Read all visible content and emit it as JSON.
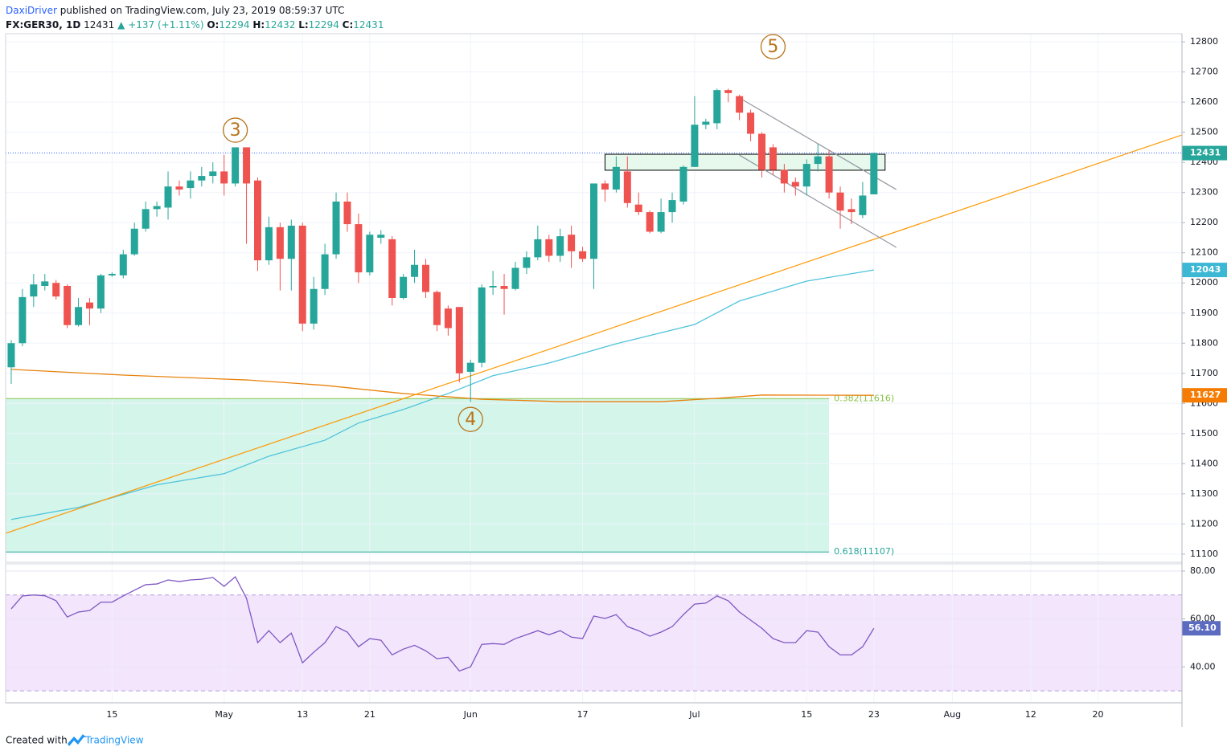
{
  "header": {
    "author": "DaxiDriver",
    "published": "published on TradingView.com, July 23, 2019 08:59:37 UTC",
    "symbol": "FX:GER30, 1D",
    "arrow": "▲",
    "change": "+137 (+1.11%)",
    "open_label": "O:",
    "high_label": "H:",
    "low_label": "L:",
    "close_label": "C:"
  },
  "footer": {
    "created": "Created with",
    "brand": "TradingView"
  },
  "chart_data": [
    {
      "type": "candlestick",
      "open": [
        11720,
        11800,
        11955,
        11990,
        12000,
        11990,
        11860,
        11935,
        11915,
        12025,
        12025,
        12095,
        12180,
        12245,
        12250,
        12320,
        12315,
        12340,
        12355,
        12370,
        12330,
        12450,
        12340,
        12075,
        12185,
        12080,
        12190,
        11865,
        11980,
        12095,
        12270,
        12195,
        12035,
        12150,
        12145,
        11950,
        12020,
        12060,
        11970,
        11915,
        11920,
        11705,
        11735,
        11985,
        11990,
        11980,
        12050,
        12085,
        12145,
        12090,
        12160,
        12105,
        12080,
        12330,
        12310,
        12370,
        12260,
        12235,
        12170,
        12235,
        12270,
        12385,
        12525,
        12530,
        12640,
        12620,
        12565,
        12495,
        12450,
        12375,
        12335,
        12320,
        12395,
        12420,
        12300,
        12245,
        12225,
        12294
      ],
      "high": [
        11810,
        11980,
        12030,
        12030,
        12010,
        11995,
        11950,
        11950,
        12030,
        12035,
        12110,
        12200,
        12270,
        12270,
        12370,
        12340,
        12370,
        12385,
        12400,
        12425,
        12450,
        12450,
        12350,
        12220,
        12200,
        12210,
        12200,
        12020,
        12130,
        12300,
        12300,
        12230,
        12170,
        12175,
        12155,
        12030,
        12110,
        12080,
        11975,
        11925,
        11920,
        11745,
        11995,
        12040,
        12030,
        12070,
        12105,
        12190,
        12160,
        12180,
        12190,
        12120,
        12330,
        12340,
        12420,
        12420,
        12300,
        12240,
        12280,
        12300,
        12390,
        12620,
        12545,
        12645,
        12645,
        12625,
        12575,
        12500,
        12460,
        12395,
        12350,
        12410,
        12460,
        12440,
        12320,
        12280,
        12335,
        12432
      ],
      "low": [
        11665,
        11790,
        11920,
        11975,
        11945,
        11850,
        11855,
        11860,
        11900,
        12020,
        12015,
        12090,
        12170,
        12220,
        12210,
        12290,
        12280,
        12320,
        12330,
        12290,
        12320,
        12130,
        12040,
        12060,
        11975,
        11975,
        11840,
        11845,
        11960,
        12080,
        12170,
        12000,
        12025,
        12130,
        11925,
        11945,
        12000,
        11950,
        11840,
        11825,
        11670,
        11605,
        11720,
        11960,
        11895,
        11975,
        12030,
        12075,
        12070,
        12070,
        12050,
        12070,
        11980,
        12270,
        12300,
        12250,
        12225,
        12165,
        12165,
        12200,
        12260,
        12385,
        12510,
        12510,
        12600,
        12540,
        12470,
        12350,
        12360,
        12300,
        12290,
        12290,
        12370,
        12280,
        12180,
        12195,
        12215,
        12294
      ],
      "close": [
        11800,
        11953,
        11995,
        12005,
        11955,
        11860,
        11920,
        11915,
        12025,
        12030,
        12095,
        12180,
        12245,
        12255,
        12320,
        12310,
        12340,
        12355,
        12370,
        12330,
        12450,
        12330,
        12075,
        12185,
        12080,
        12190,
        11865,
        11980,
        12095,
        12270,
        12195,
        12035,
        12160,
        12160,
        11950,
        12020,
        12060,
        11970,
        11860,
        11850,
        11700,
        11735,
        11985,
        11990,
        11980,
        12050,
        12085,
        12145,
        12090,
        12155,
        12105,
        12080,
        12330,
        12310,
        12385,
        12265,
        12235,
        12170,
        12235,
        12275,
        12385,
        12525,
        12535,
        12640,
        12630,
        12565,
        12495,
        12375,
        12375,
        12330,
        12320,
        12395,
        12420,
        12300,
        12240,
        12235,
        12290,
        12431
      ],
      "up_color": "#26a69a",
      "down_color": "#ef5350",
      "xlim": [
        -0.5,
        104.5
      ],
      "ylim": [
        11073,
        12827
      ],
      "yticks": [
        11100,
        11200,
        11300,
        11400,
        11500,
        11600,
        11700,
        11800,
        11900,
        12000,
        12100,
        12200,
        12300,
        12400,
        12500,
        12600,
        12700,
        12800
      ],
      "xticks": [
        {
          "value": 9,
          "label": "15"
        },
        {
          "value": 19,
          "label": "May"
        },
        {
          "value": 26,
          "label": "13"
        },
        {
          "value": 32,
          "label": "21"
        },
        {
          "value": 41,
          "label": "Jun"
        },
        {
          "value": 51,
          "label": "17"
        },
        {
          "value": 61,
          "label": "Jul"
        },
        {
          "value": 71,
          "label": "15"
        },
        {
          "value": 77,
          "label": "23"
        },
        {
          "value": 84,
          "label": "Aug"
        },
        {
          "value": 91,
          "label": "12"
        },
        {
          "value": 97,
          "label": "20"
        }
      ],
      "grid": true,
      "overlays": [
        {
          "color": "#4fc3dc",
          "x": [
            0,
            6,
            13,
            19,
            23,
            28,
            31,
            35,
            39,
            43,
            48,
            54,
            61,
            65,
            71,
            77
          ],
          "values": [
            11215,
            11255,
            11330,
            11367,
            11425,
            11478,
            11535,
            11580,
            11633,
            11692,
            11734,
            11798,
            11862,
            11940,
            12006,
            12043
          ]
        },
        {
          "color": "#e8820c",
          "x": [
            0,
            10,
            21,
            28,
            35,
            42,
            49,
            58,
            63,
            67,
            77
          ],
          "values": [
            11713,
            11694,
            11678,
            11660,
            11633,
            11614,
            11606,
            11606,
            11617,
            11628,
            11627
          ]
        }
      ],
      "trend_lines": [
        {
          "color": "#ff9800",
          "x": [
            -0.5,
            104.5
          ],
          "y": [
            11169,
            12491
          ]
        },
        {
          "color": "#9598a1",
          "x": [
            65,
            79
          ],
          "y": [
            12614,
            12310
          ]
        },
        {
          "color": "#9598a1",
          "x": [
            65,
            79
          ],
          "y": [
            12424,
            12118
          ]
        }
      ],
      "box": {
        "x": [
          53,
          78
        ],
        "y": [
          12374,
          12427
        ],
        "fill": "#e6f9ec",
        "stroke": "#000000"
      },
      "fib_zone": {
        "x_end": 73,
        "fill": "#d3f5ea",
        "levels": [
          {
            "value": 11616,
            "label": "0.382(11616)",
            "color": "#8bc34a"
          },
          {
            "value": 11107,
            "label": "0.618(11107)",
            "color": "#26a69a"
          }
        ]
      },
      "waves": [
        {
          "label": "3",
          "x": 20,
          "y": 12507
        },
        {
          "label": "4",
          "x": 41,
          "y": 11547
        },
        {
          "label": "5",
          "x": 68,
          "y": 12784
        }
      ],
      "wave_color": "#b8741a",
      "axis_markers": [
        {
          "value": 12431,
          "color": "#26a69a"
        },
        {
          "value": 12043,
          "color": "#3cb7d4"
        },
        {
          "value": 11627,
          "color": "#f57c00"
        }
      ],
      "last_price_line": {
        "value": 12431,
        "color": "#2962ff"
      }
    },
    {
      "type": "line",
      "values": [
        64.2,
        69.6,
        70,
        69.7,
        67.6,
        60.8,
        62.9,
        63.5,
        67,
        67,
        69.6,
        72,
        74.3,
        74.6,
        76.3,
        75.6,
        76.3,
        76.6,
        77.3,
        73.6,
        77.6,
        68.6,
        50.1,
        55.1,
        50.1,
        54.1,
        41.7,
        46.1,
        50.1,
        56.8,
        54.5,
        48.4,
        51.8,
        51.1,
        45,
        47.4,
        49,
        46.7,
        43.4,
        44,
        38.3,
        40,
        49.4,
        49.7,
        49.4,
        51.8,
        53.4,
        55.1,
        53.4,
        55.1,
        52.4,
        51.8,
        61.2,
        60.2,
        61.8,
        56.8,
        55.1,
        52.8,
        54.5,
        56.8,
        61.8,
        66.2,
        66.6,
        69.6,
        67.6,
        62.9,
        59.5,
        56.1,
        51.8,
        50.1,
        50.1,
        55.1,
        54.5,
        48.4,
        45,
        45,
        48.4,
        56.1
      ],
      "color": "#7e57c2",
      "ylim": [
        25,
        83
      ],
      "yticks": [
        {
          "value": 40,
          "label": "40.00"
        },
        {
          "value": 60,
          "label": "60.00"
        },
        {
          "value": 80,
          "label": "80.00"
        }
      ],
      "bands": [
        30,
        70
      ],
      "band_fill": "#f3e5fc",
      "band_color": "#b39ddb",
      "last_marker": {
        "value": 56.1,
        "label": "56.10",
        "color": "#5c6bc0"
      }
    }
  ]
}
